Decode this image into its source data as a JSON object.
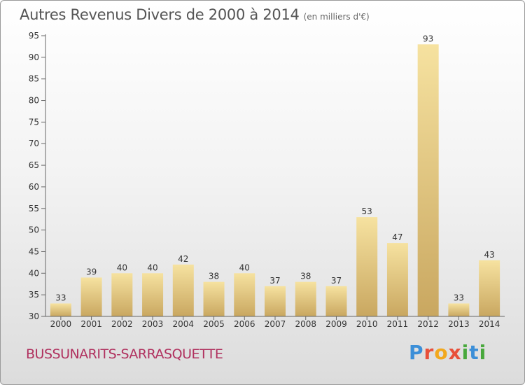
{
  "header": {
    "title": "Autres Revenus Divers de 2000 à 2014",
    "subtitle": "(en milliers d'€)"
  },
  "footer": {
    "commune": "BUSSUNARITS-SARRASQUETTE",
    "logo_letters": [
      "P",
      "r",
      "o",
      "x",
      "i",
      "t",
      "i"
    ],
    "logo_colors": [
      "#3c8fd8",
      "#e8503a",
      "#f2a81d",
      "#e8503a",
      "#48a83c",
      "#3c8fd8",
      "#48a83c"
    ]
  },
  "chart_data": {
    "type": "bar",
    "title": "Autres Revenus Divers de 2000 à 2014",
    "subtitle": "(en milliers d'€)",
    "categories": [
      "2000",
      "2001",
      "2002",
      "2003",
      "2004",
      "2005",
      "2006",
      "2007",
      "2008",
      "2009",
      "2010",
      "2011",
      "2012",
      "2013",
      "2014"
    ],
    "values": [
      33,
      39,
      40,
      40,
      42,
      38,
      40,
      37,
      38,
      37,
      53,
      47,
      93,
      33,
      43
    ],
    "ylim": [
      30,
      95
    ],
    "yticks": [
      30,
      35,
      40,
      45,
      50,
      55,
      60,
      65,
      70,
      75,
      80,
      85,
      90,
      95
    ],
    "grid": false,
    "legend": "none",
    "colors": {
      "bar_top": "#f6e2a0",
      "bar_bottom": "#c9a760",
      "axis": "#666666"
    }
  }
}
